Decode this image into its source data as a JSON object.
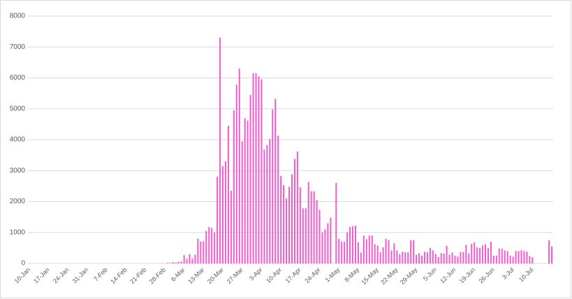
{
  "chart_data": {
    "type": "bar",
    "color": "#f05ccc",
    "grid": true,
    "ylim": [
      0,
      8000
    ],
    "yticks": [
      0,
      1000,
      2000,
      3000,
      4000,
      5000,
      6000,
      7000,
      8000
    ],
    "categories": [
      "10-Jan",
      null,
      null,
      null,
      null,
      null,
      null,
      "17-Jan",
      null,
      null,
      null,
      null,
      null,
      null,
      "24-Jan",
      null,
      null,
      null,
      null,
      null,
      null,
      "31-Jan",
      null,
      null,
      null,
      null,
      null,
      null,
      "7-Feb",
      null,
      null,
      null,
      null,
      null,
      null,
      "14-Feb",
      null,
      null,
      null,
      null,
      null,
      null,
      "21-Feb",
      null,
      null,
      null,
      null,
      null,
      null,
      "28-Feb",
      null,
      null,
      null,
      null,
      null,
      null,
      "6-Mar",
      null,
      null,
      null,
      null,
      null,
      null,
      "13-Mar",
      null,
      null,
      null,
      null,
      null,
      null,
      "20-Mar",
      null,
      null,
      null,
      null,
      null,
      null,
      "27-Mar",
      null,
      null,
      null,
      null,
      null,
      null,
      "3-Apr",
      null,
      null,
      null,
      null,
      null,
      null,
      "10-Apr",
      null,
      null,
      null,
      null,
      null,
      null,
      "17-Apr",
      null,
      null,
      null,
      null,
      null,
      null,
      "24-Apr",
      null,
      null,
      null,
      null,
      null,
      null,
      "1-May",
      null,
      null,
      null,
      null,
      null,
      null,
      "8-May",
      null,
      null,
      null,
      null,
      null,
      null,
      "15-May",
      null,
      null,
      null,
      null,
      null,
      null,
      "22-May",
      null,
      null,
      null,
      null,
      null,
      null,
      "29-May",
      null,
      null,
      null,
      null,
      null,
      null,
      "5-Jun",
      null,
      null,
      null,
      null,
      null,
      null,
      "12-Jun",
      null,
      null,
      null,
      null,
      null,
      null,
      "19-Jun",
      null,
      null,
      null,
      null,
      null,
      null,
      "26-Jun",
      null,
      null,
      null,
      null,
      null,
      null,
      "3-Jul",
      null,
      null,
      null,
      null,
      null,
      null,
      "10-Jul",
      null,
      null,
      null,
      null,
      null,
      null,
      null
    ],
    "values": [
      0,
      0,
      0,
      0,
      0,
      0,
      0,
      0,
      0,
      0,
      0,
      0,
      0,
      0,
      0,
      0,
      0,
      0,
      0,
      0,
      0,
      0,
      0,
      0,
      0,
      0,
      0,
      0,
      0,
      0,
      0,
      0,
      0,
      0,
      0,
      0,
      0,
      0,
      0,
      0,
      0,
      0,
      0,
      0,
      0,
      0,
      0,
      0,
      0,
      0,
      20,
      10,
      40,
      30,
      50,
      60,
      270,
      150,
      300,
      150,
      280,
      800,
      700,
      720,
      1050,
      1170,
      1150,
      1000,
      2800,
      7300,
      3150,
      3300,
      4450,
      2350,
      4950,
      5780,
      6300,
      3950,
      4700,
      4620,
      5450,
      6150,
      6150,
      6050,
      5950,
      3680,
      3830,
      4020,
      4980,
      5320,
      4130,
      2830,
      2530,
      2100,
      2480,
      2880,
      3380,
      3620,
      2460,
      1780,
      1780,
      2630,
      2330,
      2330,
      2050,
      1730,
      1000,
      1100,
      1300,
      1480,
      0,
      2600,
      800,
      700,
      700,
      1000,
      1180,
      1200,
      1220,
      680,
      350,
      900,
      780,
      900,
      900,
      620,
      580,
      360,
      520,
      800,
      750,
      420,
      650,
      420,
      300,
      380,
      360,
      360,
      750,
      750,
      280,
      330,
      250,
      380,
      360,
      500,
      420,
      300,
      200,
      330,
      320,
      570,
      280,
      350,
      250,
      220,
      370,
      370,
      600,
      320,
      630,
      680,
      520,
      500,
      580,
      620,
      500,
      700,
      250,
      250,
      480,
      470,
      420,
      400,
      250,
      220,
      400,
      400,
      430,
      400,
      380,
      240,
      200,
      0,
      0,
      0,
      0,
      0,
      750,
      550
    ]
  }
}
